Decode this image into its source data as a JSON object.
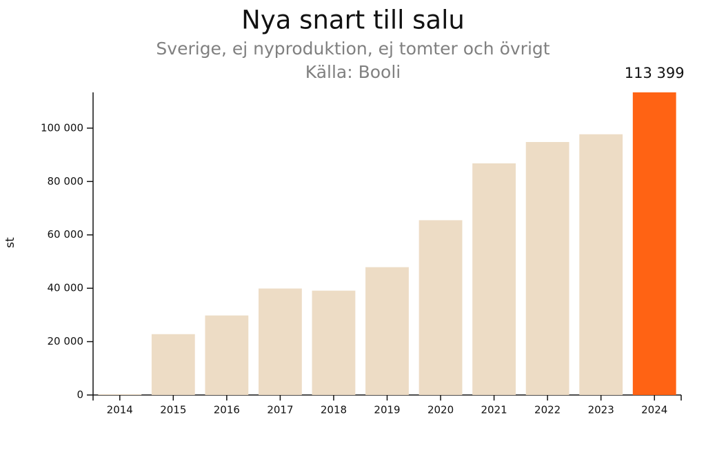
{
  "chart_data": {
    "type": "bar",
    "title": "Nya snart till salu",
    "subtitle": "Sverige, ej nyproduktion, ej tomter och övrigt",
    "source": "Källa: Booli",
    "y_label": "st",
    "categories": [
      "2014",
      "2015",
      "2016",
      "2017",
      "2018",
      "2019",
      "2020",
      "2021",
      "2022",
      "2023",
      "2024"
    ],
    "values": [
      300,
      22800,
      29800,
      39900,
      39100,
      47900,
      65500,
      86800,
      94800,
      97700,
      113399
    ],
    "value_labels": [
      null,
      null,
      null,
      null,
      null,
      null,
      null,
      null,
      null,
      null,
      "113 399"
    ],
    "colors": [
      "#eddcc5",
      "#eddcc5",
      "#eddcc5",
      "#eddcc5",
      "#eddcc5",
      "#eddcc5",
      "#eddcc5",
      "#eddcc5",
      "#eddcc5",
      "#eddcc5",
      "#ff6314"
    ],
    "ylim": [
      0,
      113399
    ],
    "yticks": [
      0,
      {
        "value": 20000,
        "label": "20 000"
      },
      {
        "value": 40000,
        "label": "40 000"
      },
      {
        "value": 60000,
        "label": "60 000"
      },
      {
        "value": 80000,
        "label": "80 000"
      },
      {
        "value": 100000,
        "label": "100 000"
      }
    ],
    "grid": false
  }
}
